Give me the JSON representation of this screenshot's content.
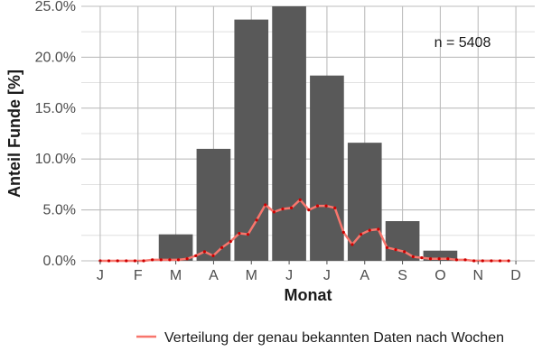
{
  "chart_data": {
    "type": "bar",
    "xlabel": "Monat",
    "ylabel": "Anteil Funde [%]",
    "ylim": [
      0,
      25
    ],
    "grid": true,
    "categories": [
      "J",
      "F",
      "M",
      "A",
      "M",
      "J",
      "J",
      "A",
      "S",
      "O",
      "N",
      "D"
    ],
    "y_ticks": [
      "0.0%",
      "5.0%",
      "10.0%",
      "15.0%",
      "20.0%",
      "25.0%"
    ],
    "y_tick_values": [
      0,
      5,
      10,
      15,
      20,
      25
    ],
    "bar_color": "#595959",
    "annotation": "n = 5408",
    "series": [
      {
        "values": [
          0.0,
          0.0,
          2.6,
          11.0,
          23.7,
          25.0,
          18.2,
          11.6,
          3.9,
          1.0,
          0.1,
          0.0
        ]
      },
      {
        "name": "Verteilung der genau bekannten Daten nach Wochen",
        "type": "line",
        "color": "#f8766d",
        "marker_color": "#cc0000",
        "x": [
          1,
          1.23,
          1.46,
          1.69,
          1.92,
          2.15,
          2.38,
          2.61,
          2.84,
          3.07,
          3.3,
          3.53,
          3.76,
          3.99,
          4.22,
          4.45,
          4.68,
          4.91,
          5.14,
          5.37,
          5.6,
          5.83,
          6.06,
          6.29,
          6.52,
          6.75,
          6.98,
          7.21,
          7.44,
          7.67,
          7.9,
          8.13,
          8.36,
          8.59,
          8.82,
          9.05,
          9.28,
          9.51,
          9.74,
          9.97,
          10.2,
          10.43,
          10.66,
          10.89,
          11.12,
          11.35,
          11.58,
          11.81
        ],
        "values": [
          0,
          0,
          0,
          0,
          0,
          0,
          0.1,
          0.1,
          0.1,
          0.1,
          0.2,
          0.5,
          0.9,
          0.5,
          1.3,
          1.9,
          2.7,
          2.6,
          4.0,
          5.5,
          4.8,
          5.1,
          5.2,
          6.0,
          5.0,
          5.4,
          5.4,
          5.2,
          2.8,
          1.6,
          2.6,
          3.0,
          3.1,
          1.3,
          1.1,
          0.9,
          0.4,
          0.3,
          0.2,
          0.2,
          0.2,
          0.1,
          0.1,
          0,
          0,
          0,
          0,
          0
        ]
      }
    ],
    "legend": {
      "position": "bottom",
      "label": "Verteilung der genau bekannten Daten nach Wochen"
    }
  }
}
